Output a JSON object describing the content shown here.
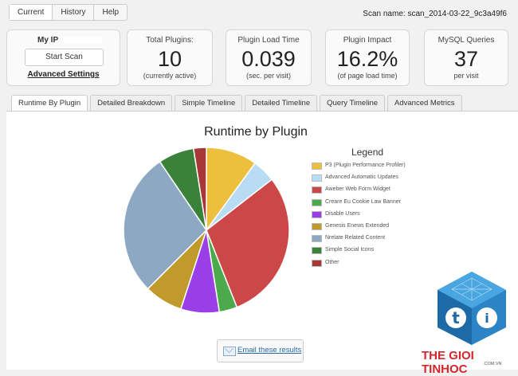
{
  "nav": {
    "buttons": [
      "Current",
      "History",
      "Help"
    ]
  },
  "scan_name": "Scan name: scan_2014-03-22_9c3a49f6",
  "ip_card": {
    "label": "My IP",
    "start_scan": "Start Scan",
    "advanced": "Advanced Settings"
  },
  "stats": [
    {
      "label": "Total Plugins:",
      "value": "10",
      "sub": "(currently active)"
    },
    {
      "label": "Plugin Load Time",
      "value": "0.039",
      "sub": "(sec. per visit)"
    },
    {
      "label": "Plugin Impact",
      "value": "16.2%",
      "sub": "(of page load time)"
    },
    {
      "label": "MySQL Queries",
      "value": "37",
      "sub": "per visit"
    }
  ],
  "tabs": [
    "Runtime By Plugin",
    "Detailed Breakdown",
    "Simple Timeline",
    "Detailed Timeline",
    "Query Timeline",
    "Advanced Metrics"
  ],
  "email_button": "Email these results",
  "brand": {
    "name": "THE GIOI TINHOC",
    "url": ".COM.VN"
  },
  "chart_data": {
    "type": "pie",
    "title": "Runtime by Plugin",
    "legend_title": "Legend",
    "legend_position": "right",
    "slices": [
      {
        "label": "P3 (Plugin Performance Profiler)",
        "value": 10.0,
        "color": "#ecc03c"
      },
      {
        "label": "Advanced Automatic Updates",
        "value": 4.5,
        "color": "#b7dcf4"
      },
      {
        "label": "Aweber Web Form Widget",
        "value": 29.5,
        "color": "#cc4747"
      },
      {
        "label": "Creare Eu Cookie Law Banner",
        "value": 3.5,
        "color": "#4caa4c"
      },
      {
        "label": "Disable Users",
        "value": 7.5,
        "color": "#9a3fe8"
      },
      {
        "label": "Genesis Enews Extended",
        "value": 7.5,
        "color": "#c09a2b"
      },
      {
        "label": "Nrelate Related Content",
        "value": 28.0,
        "color": "#8ca8c3"
      },
      {
        "label": "Simple Social Icons",
        "value": 7.0,
        "color": "#3a813a"
      },
      {
        "label": "Other",
        "value": 2.5,
        "color": "#a73838"
      }
    ]
  }
}
